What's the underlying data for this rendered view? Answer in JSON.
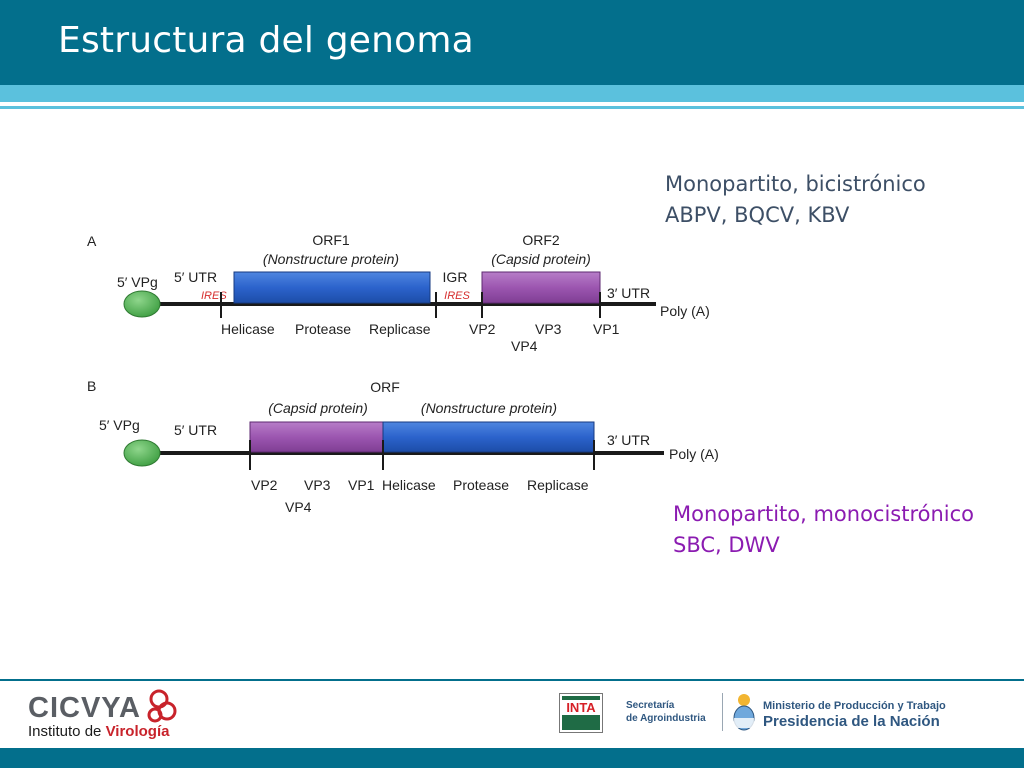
{
  "slide": {
    "title": "Estructura del genoma"
  },
  "captions": {
    "a_line1": "Monopartito, bicistrónico",
    "a_line2": "ABPV, BQCV, KBV",
    "b_line1": "Monopartito, monocistrónico",
    "b_line2": "SBC, DWV"
  },
  "diagram_a": {
    "panel_label": "A",
    "vpg": "5′ VPg",
    "utr5": "5′ UTR",
    "ires1": "IRES",
    "orf1_name": "ORF1",
    "orf1_desc": "(Nonstructure protein)",
    "igr": "IGR",
    "ires2": "IRES",
    "orf2_name": "ORF2",
    "orf2_desc": "(Capsid protein)",
    "utr3": "3′ UTR",
    "polya": "Poly (A)",
    "helicase": "Helicase",
    "protease": "Protease",
    "replicase": "Replicase",
    "vp2": "VP2",
    "vp3": "VP3",
    "vp1": "VP1",
    "vp4": "VP4"
  },
  "diagram_b": {
    "panel_label": "B",
    "vpg": "5′ VPg",
    "utr5": "5′ UTR",
    "orf_name": "ORF",
    "capsid_desc": "(Capsid protein)",
    "nonstructure_desc": "(Nonstructure protein)",
    "utr3": "3′ UTR",
    "polya": "Poly (A)",
    "vp2": "VP2",
    "vp3": "VP3",
    "vp1": "VP1",
    "helicase": "Helicase",
    "protease": "Protease",
    "replicase": "Replicase",
    "vp4": "VP4"
  },
  "footer": {
    "cicvya": "CICVYA",
    "instituto_prefix": "Instituto de ",
    "instituto_highlight": "Virología",
    "inta": "INTA",
    "secretaria_line1": "Secretaría",
    "secretaria_line2": "de Agroindustria",
    "ministerio": "Ministerio de Producción y Trabajo",
    "presidencia": "Presidencia de la Nación"
  },
  "colors": {
    "title_bar": "#036f8c",
    "stripe": "#5bc1dd",
    "nonstructure_box": "#2f67d0",
    "capsid_box": "#a05cb3",
    "vpg_circle": "#5cb860",
    "ires_red": "#d62d2d",
    "caption_a": "#3d4f66",
    "caption_b": "#8b1bb1"
  }
}
